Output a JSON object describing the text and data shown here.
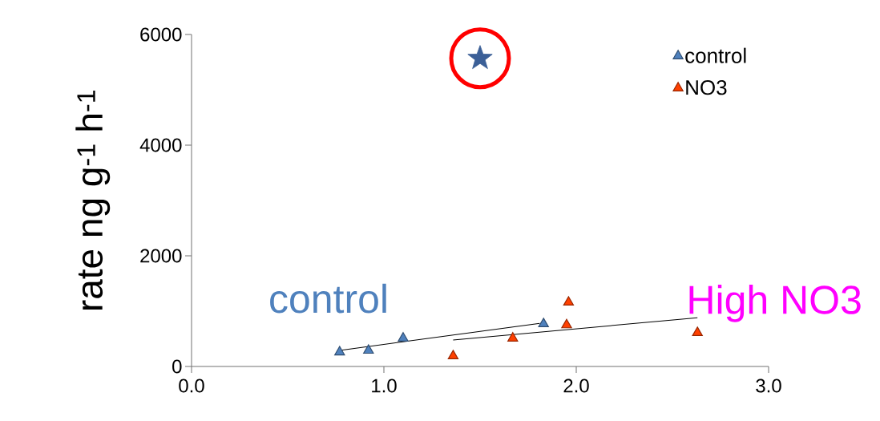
{
  "chart_data": {
    "type": "scatter",
    "ylabel": "rate ng g$^{-1}$ h$^{-1}$",
    "xlim": [
      0,
      3
    ],
    "ylim": [
      0,
      6000
    ],
    "xticks": [
      {
        "value": 0,
        "label": "0.0"
      },
      {
        "value": 1,
        "label": "1.0"
      },
      {
        "value": 2,
        "label": "2.0"
      },
      {
        "value": 3,
        "label": "3.0"
      }
    ],
    "yticks": [
      0,
      2000,
      4000,
      6000
    ],
    "grid": false,
    "legend": "top right",
    "series": [
      {
        "name": "control",
        "color": "#4f81bd",
        "marker": "triangle",
        "x": [
          0.77,
          0.92,
          1.1,
          1.83
        ],
        "values": [
          260,
          290,
          510,
          770
        ]
      },
      {
        "name": "NO3",
        "color": "#ff4000",
        "marker": "triangle",
        "x": [
          1.36,
          1.67,
          1.96,
          1.95,
          2.63
        ],
        "values": [
          190,
          510,
          1160,
          750,
          610
        ]
      },
      {
        "type": "line",
        "color": "#000000",
        "marker": "none",
        "x": [
          0.77,
          1.81
        ],
        "values": [
          290,
          780
        ]
      },
      {
        "type": "line",
        "color": "#000000",
        "marker": "none",
        "x": [
          1.36,
          2.63
        ],
        "values": [
          480,
          880
        ]
      },
      {
        "color": "#3b5f97",
        "marker": "star",
        "x": [
          1.5
        ],
        "values": [
          5570
        ]
      }
    ],
    "annotations": [
      "control",
      "High NO3"
    ]
  }
}
